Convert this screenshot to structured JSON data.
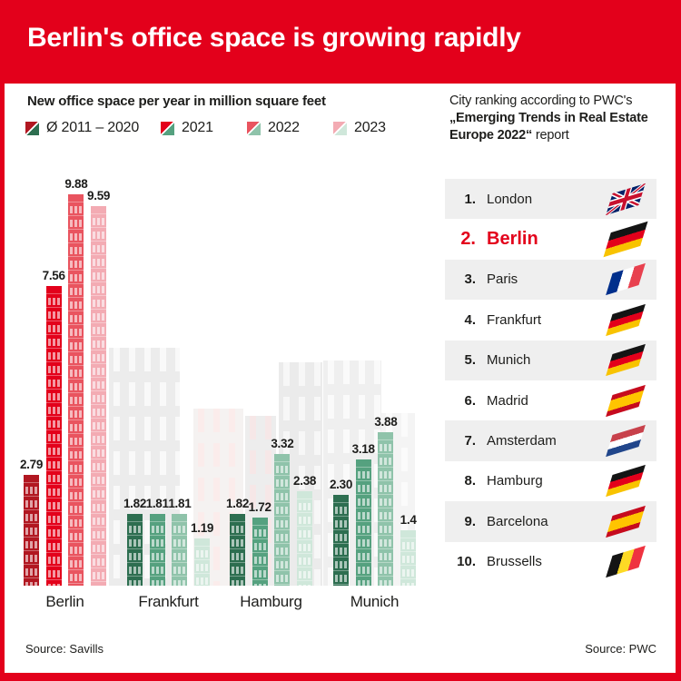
{
  "accent_color": "#e3001b",
  "header": {
    "title": "Berlin's office space is growing rapidly"
  },
  "chart": {
    "title": "New office space per year in million square feet",
    "source_label": "Source: Savills",
    "palette": {
      "berlin": [
        "#b11721",
        "#e3001b",
        "#e9545f",
        "#f3abb3"
      ],
      "others": [
        "#2d6e50",
        "#55a17f",
        "#8fc3aa",
        "#cfe7da"
      ]
    },
    "chart_data": {
      "type": "bar",
      "title": "New office space per year in million square feet",
      "unit": "million square feet",
      "categories": [
        "Berlin",
        "Frankfurt",
        "Hamburg",
        "Munich"
      ],
      "series": [
        {
          "name": "Ø 2011 – 2020",
          "values": [
            2.79,
            1.82,
            1.82,
            2.3
          ],
          "labels": [
            "2.79",
            "1.82",
            "1.82",
            "2.30"
          ]
        },
        {
          "name": "2021",
          "values": [
            7.56,
            1.81,
            1.72,
            3.18
          ],
          "labels": [
            "7.56",
            "1.81",
            "1.72",
            "3.18"
          ]
        },
        {
          "name": "2022",
          "values": [
            9.88,
            1.81,
            3.32,
            3.88
          ],
          "labels": [
            "9.88",
            "1.81",
            "3.32",
            "3.88"
          ]
        },
        {
          "name": "2023",
          "values": [
            9.59,
            1.19,
            2.38,
            1.4
          ],
          "labels": [
            "9.59",
            "1.19",
            "2.38",
            "1.4"
          ]
        }
      ],
      "ylim": [
        0,
        10
      ],
      "grid": false,
      "legend_position": "top",
      "highlight_category": "Berlin"
    }
  },
  "ranking": {
    "heading_prefix": "City ranking according to PWC's ",
    "heading_bold": "„Emerging Trends in Real Estate Europe 2022“",
    "heading_suffix": " report",
    "source_label": "Source: PWC",
    "items": [
      {
        "rank": "1.",
        "city": "London",
        "flag": "uk",
        "highlight": false
      },
      {
        "rank": "2.",
        "city": "Berlin",
        "flag": "de",
        "highlight": true
      },
      {
        "rank": "3.",
        "city": "Paris",
        "flag": "fr",
        "highlight": false
      },
      {
        "rank": "4.",
        "city": "Frankfurt",
        "flag": "de",
        "highlight": false
      },
      {
        "rank": "5.",
        "city": "Munich",
        "flag": "de",
        "highlight": false
      },
      {
        "rank": "6.",
        "city": "Madrid",
        "flag": "es",
        "highlight": false
      },
      {
        "rank": "7.",
        "city": "Amsterdam",
        "flag": "nl",
        "highlight": false
      },
      {
        "rank": "8.",
        "city": "Hamburg",
        "flag": "de",
        "highlight": false
      },
      {
        "rank": "9.",
        "city": "Barcelona",
        "flag": "es",
        "highlight": false
      },
      {
        "rank": "10.",
        "city": "Brussells",
        "flag": "be",
        "highlight": false
      }
    ]
  }
}
